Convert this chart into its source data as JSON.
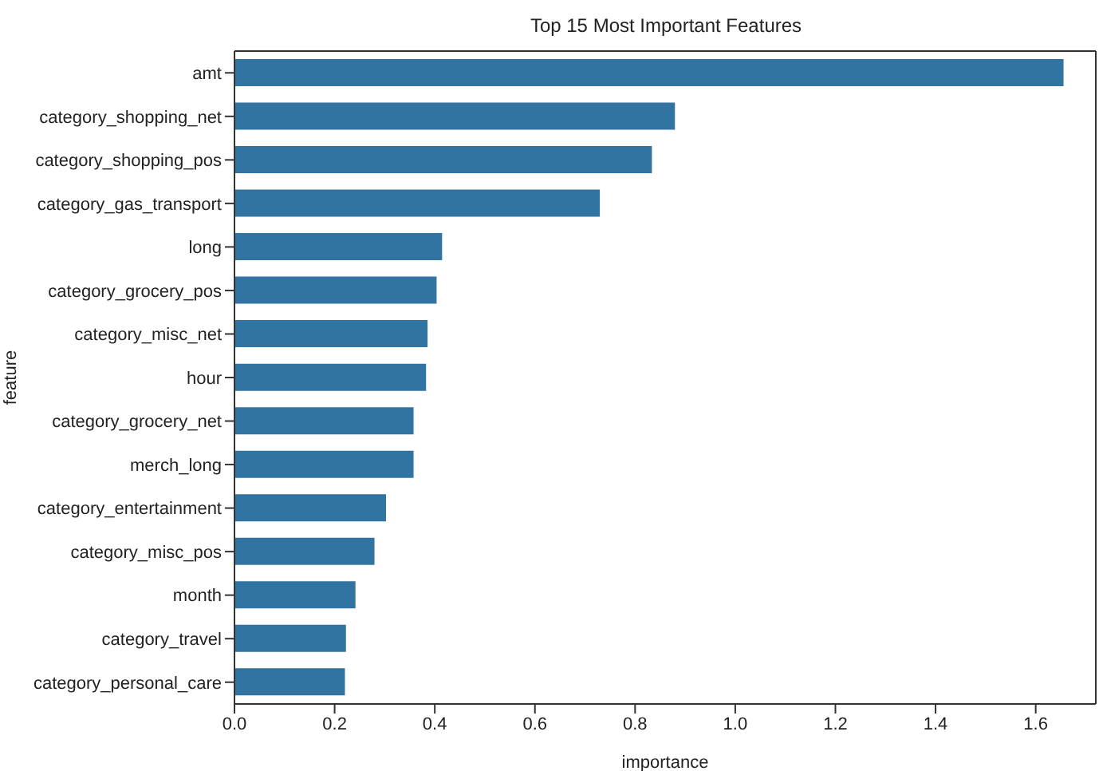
{
  "chart_data": {
    "type": "bar",
    "orientation": "horizontal",
    "title": "Top 15 Most Important Features",
    "xlabel": "importance",
    "ylabel": "feature",
    "categories": [
      "amt",
      "category_shopping_net",
      "category_shopping_pos",
      "category_gas_transport",
      "long",
      "category_grocery_pos",
      "category_misc_net",
      "hour",
      "category_grocery_net",
      "merch_long",
      "category_entertainment",
      "category_misc_pos",
      "month",
      "category_travel",
      "category_personal_care"
    ],
    "values": [
      1.654,
      0.878,
      0.832,
      0.728,
      0.413,
      0.402,
      0.384,
      0.381,
      0.356,
      0.356,
      0.301,
      0.278,
      0.24,
      0.221,
      0.219
    ],
    "color": "#3274a1",
    "xlim": [
      0,
      1.72
    ],
    "xticks": [
      {
        "value": 0,
        "label": "0.0"
      },
      {
        "value": 0.2,
        "label": "0.2"
      },
      {
        "value": 0.4,
        "label": "0.4"
      },
      {
        "value": 0.6,
        "label": "0.6"
      },
      {
        "value": 0.8,
        "label": "0.8"
      },
      {
        "value": 1,
        "label": "1.0"
      },
      {
        "value": 1.2,
        "label": "1.2"
      },
      {
        "value": 1.4,
        "label": "1.4"
      },
      {
        "value": 1.6,
        "label": "1.6"
      }
    ],
    "grid": false,
    "legend": false
  }
}
